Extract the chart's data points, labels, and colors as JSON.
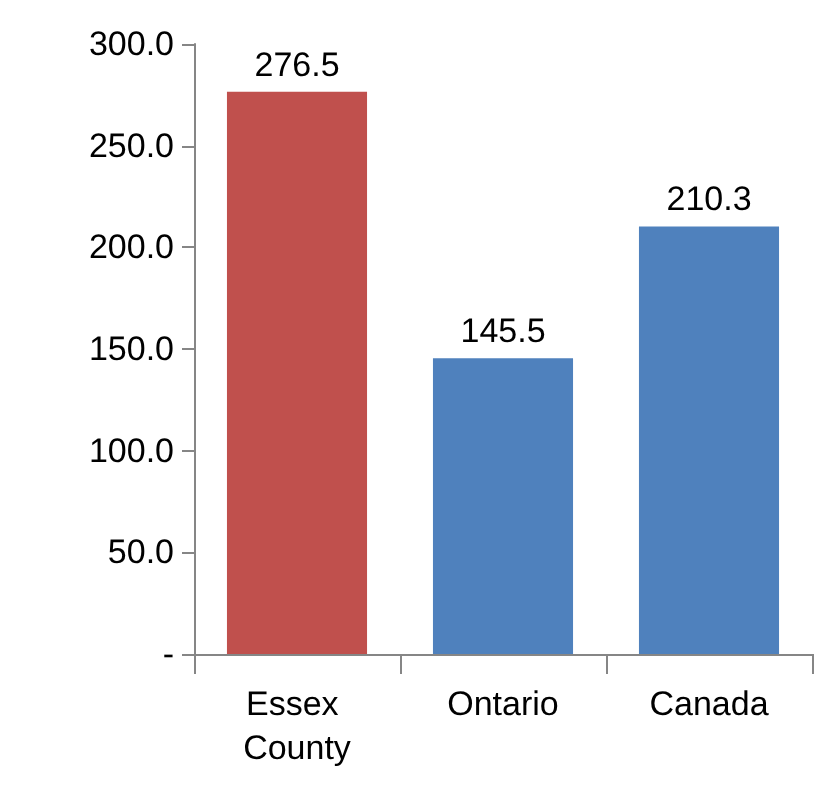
{
  "chart_data": {
    "type": "bar",
    "categories": [
      "Essex County",
      "Ontario",
      "Canada"
    ],
    "values": [
      276.5,
      145.5,
      210.3
    ],
    "colors": [
      "#c0504d",
      "#4f81bd",
      "#4f81bd"
    ],
    "ylim": [
      0,
      300
    ],
    "yticks": [
      {
        "value": 0,
        "label": "-"
      },
      {
        "value": 50,
        "label": "50.0"
      },
      {
        "value": 100,
        "label": "100.0"
      },
      {
        "value": 150,
        "label": "150.0"
      },
      {
        "value": 200,
        "label": "200.0"
      },
      {
        "value": 250,
        "label": "250.0"
      },
      {
        "value": 300,
        "label": "300.0"
      }
    ],
    "data_labels": true
  }
}
